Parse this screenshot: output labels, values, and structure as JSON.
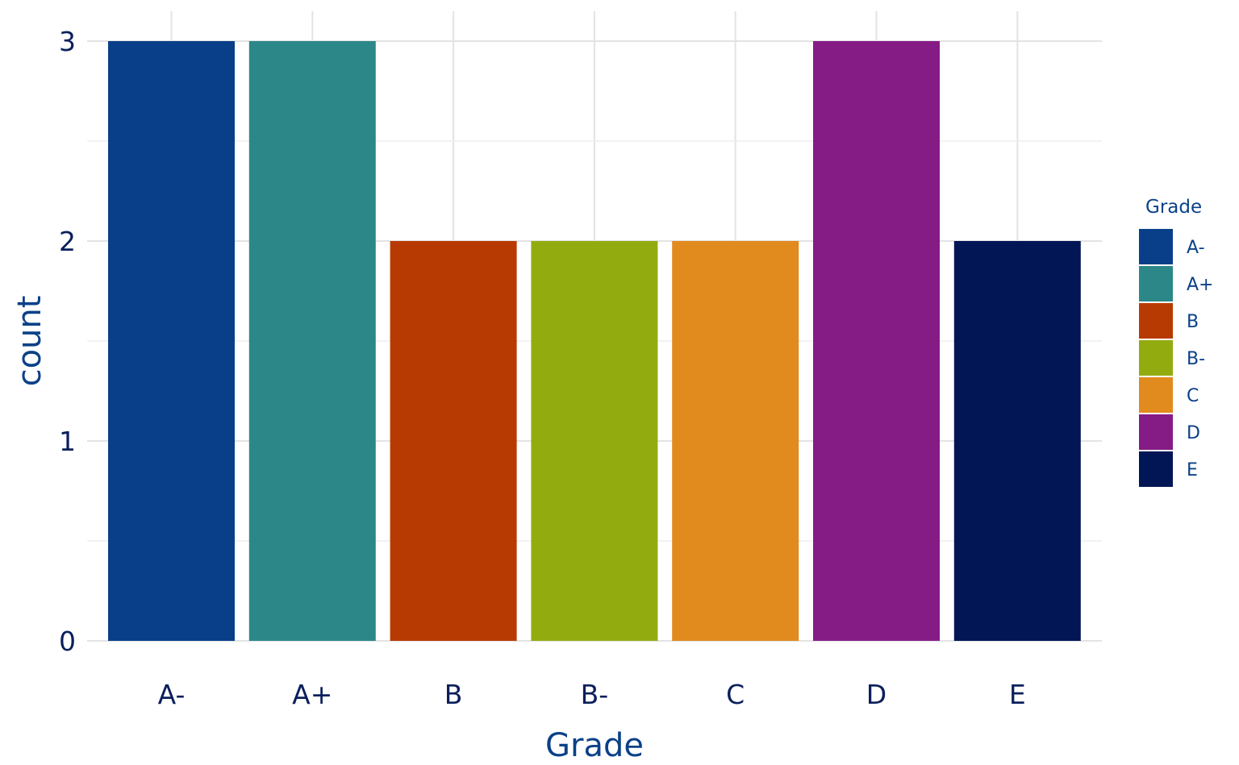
{
  "chart_data": {
    "type": "bar",
    "title": "",
    "xlabel": "Grade",
    "ylabel": "count",
    "categories": [
      "A-",
      "A+",
      "B",
      "B-",
      "C",
      "D",
      "E"
    ],
    "values": [
      3,
      3,
      2,
      2,
      2,
      3,
      2
    ],
    "colors": [
      "#083f88",
      "#2c8888",
      "#b83a03",
      "#92ac10",
      "#e18a1e",
      "#851c86",
      "#021655"
    ],
    "y_ticks": [
      0,
      1,
      2,
      3
    ],
    "y_tick_labels": [
      "0",
      "1",
      "2",
      "3"
    ],
    "ylim": [
      0,
      3
    ],
    "grid": true,
    "legend": {
      "title": "Grade",
      "position": "right",
      "entries": [
        "A-",
        "A+",
        "B",
        "B-",
        "C",
        "D",
        "E"
      ]
    }
  }
}
